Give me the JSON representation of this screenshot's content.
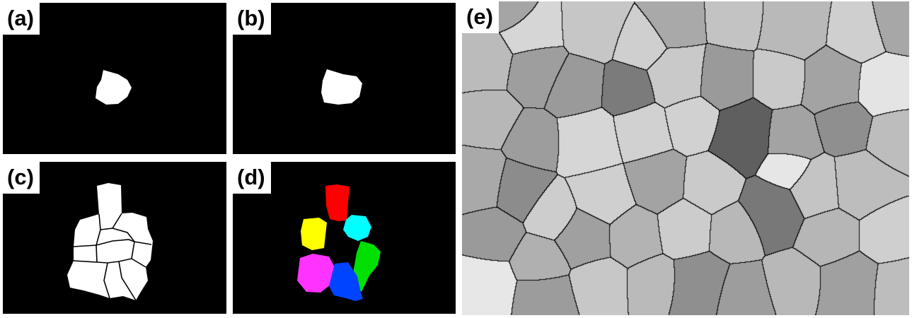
{
  "figure": {
    "panels": [
      {
        "id": "a",
        "label": "(a)"
      },
      {
        "id": "b",
        "label": "(b)"
      },
      {
        "id": "c",
        "label": "(c)"
      },
      {
        "id": "d",
        "label": "(d)"
      },
      {
        "id": "e",
        "label": "(e)"
      }
    ],
    "colors": {
      "background": "#000000",
      "grain_mask": "#ffffff",
      "boundary": "#000000",
      "segment_red": "#ff0000",
      "segment_cyan": "#00ffff",
      "segment_yellow": "#ffff00",
      "segment_green": "#00e000",
      "segment_magenta": "#ff33ff",
      "segment_blue": "#0044ff"
    }
  }
}
